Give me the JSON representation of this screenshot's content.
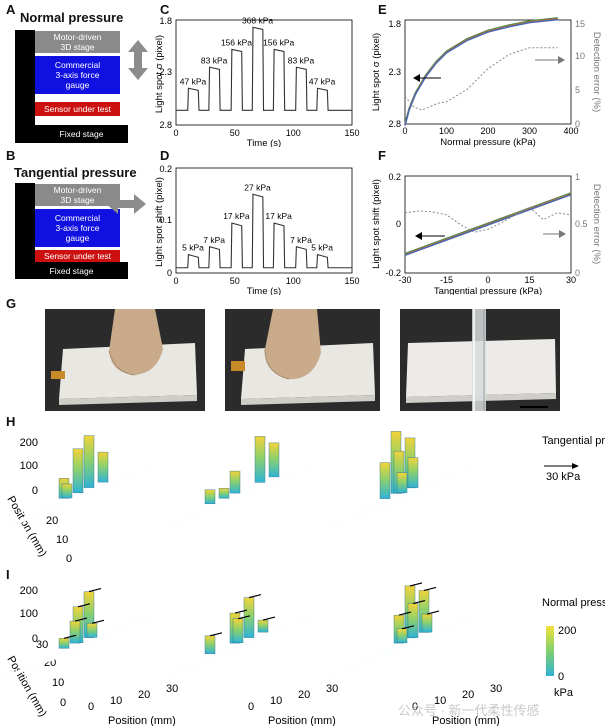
{
  "panels": {
    "A": {
      "label": "A",
      "title": "Normal pressure",
      "blocks": {
        "stage": "Motor-driven\n3D stage",
        "gauge": "Commercial\n3-axis force\ngauge",
        "sensor": "Sensor under test",
        "fixed": "Fixed stage"
      }
    },
    "B": {
      "label": "B",
      "title": "Tangential pressure",
      "blocks": {
        "stage": "Motor-driven\n3D stage",
        "gauge": "Commercial\n3-axis force\ngauge",
        "sensor": "Sensor under test",
        "fixed": "Fixed stage"
      }
    },
    "G": {
      "label": "G"
    },
    "H": {
      "label": "H",
      "legend_label": "Tangential\npressure",
      "arrow_label": "30 kPa"
    },
    "I": {
      "label": "I",
      "legend_label": "Normal\npressure",
      "colorbar_max": "200",
      "colorbar_min": "0",
      "colorbar_unit": "kPa"
    }
  },
  "colors": {
    "stage": "#8a8a8a",
    "gauge": "#1010e0",
    "sensor": "#cc1010",
    "fixed": "#000000",
    "frame": "#000000",
    "arrow": "#8c8c8c",
    "trace": "#333333"
  },
  "chart_data": [
    {
      "id": "C",
      "type": "line",
      "label": "C",
      "xlabel": "Time (s)",
      "ylabel": "Light spot σ (pixel)",
      "xlim": [
        0,
        150
      ],
      "ylim": [
        2.8,
        1.8
      ],
      "xticks": [
        "0",
        "50",
        "100",
        "150"
      ],
      "yticks": [
        "1.8",
        "2.3",
        "2.8"
      ],
      "annotations": [
        "47 kPa",
        "83 kPa",
        "156 kPa",
        "368 kPa",
        "156 kPa",
        "83 kPa",
        "47 kPa"
      ],
      "levels": [
        2.45,
        2.25,
        2.08,
        1.87,
        2.08,
        2.25,
        2.45
      ],
      "baseline": 2.66
    },
    {
      "id": "D",
      "type": "line",
      "label": "D",
      "xlabel": "Time (s)",
      "ylabel": "Light spot shift (pixel)",
      "xlim": [
        0,
        150
      ],
      "ylim": [
        0,
        0.2
      ],
      "xticks": [
        "0",
        "50",
        "100",
        "150"
      ],
      "yticks": [
        "0",
        "0.1",
        "0.2"
      ],
      "annotations": [
        "5 kPa",
        "7 kPa",
        "17 kPa",
        "27 kPa",
        "17 kPa",
        "7 kPa",
        "5 kPa"
      ],
      "levels": [
        0.035,
        0.05,
        0.095,
        0.15,
        0.095,
        0.05,
        0.035
      ],
      "baseline": 0.01
    },
    {
      "id": "E",
      "type": "line",
      "label": "E",
      "xlabel": "Normal pressure (kPa)",
      "ylabel": "Light spot σ (pixel)",
      "y2label": "Detection error (%)",
      "xlim": [
        0,
        400
      ],
      "ylim": [
        2.8,
        1.8
      ],
      "y2lim": [
        0,
        15
      ],
      "xticks": [
        "0",
        "100",
        "200",
        "300",
        "400"
      ],
      "yticks": [
        "1.8",
        "2.3",
        "2.8"
      ],
      "y2ticks": [
        "0",
        "5",
        "10",
        "15"
      ],
      "series": [
        {
          "name": "",
          "x": [
            0,
            10,
            25,
            50,
            75,
            100,
            150,
            200,
            250,
            300,
            368
          ],
          "y": [
            2.8,
            2.65,
            2.5,
            2.33,
            2.2,
            2.1,
            1.98,
            1.9,
            1.85,
            1.81,
            1.78
          ]
        },
        {
          "name": "",
          "x": [
            0,
            20,
            40,
            60,
            80,
            100,
            150,
            200,
            250,
            300,
            368
          ],
          "y2": [
            4,
            2.5,
            2,
            2.5,
            3,
            3.2,
            5,
            8,
            10,
            11,
            11
          ]
        }
      ]
    },
    {
      "id": "F",
      "type": "line",
      "label": "F",
      "xlabel": "Tangential pressure (kPa)",
      "ylabel": "Light spot shift (pixel)",
      "y2label": "Detection error (%)",
      "xlim": [
        -30,
        30
      ],
      "ylim": [
        -0.2,
        0.2
      ],
      "y2lim": [
        0,
        1
      ],
      "xticks": [
        "-30",
        "-15",
        "0",
        "15",
        "30"
      ],
      "yticks": [
        "-0.2",
        "0",
        "0.2"
      ],
      "y2ticks": [
        "0",
        "0.5",
        "1"
      ],
      "series": [
        {
          "name": "",
          "x": [
            -30,
            30
          ],
          "y": [
            -0.12,
            0.13
          ]
        },
        {
          "name": "",
          "x": [
            -30,
            -25,
            -20,
            -15,
            -10,
            -5,
            0,
            5,
            10,
            15,
            20,
            25,
            30
          ],
          "y2": [
            0.62,
            0.64,
            0.63,
            0.6,
            0.5,
            0.42,
            0.45,
            0.52,
            0.6,
            0.68,
            0.55,
            0.62,
            0.6
          ]
        }
      ]
    },
    {
      "id": "H",
      "type": "bar3d",
      "label": "H",
      "zticks": [
        "0",
        "100",
        "200"
      ],
      "ylabel": "Position\n(mm)",
      "yticks": [
        "0",
        "10",
        "20"
      ]
    },
    {
      "id": "I",
      "type": "bar3d",
      "label": "I",
      "zticks": [
        "0",
        "100",
        "200"
      ],
      "ylabel": "Position\n(mm)",
      "yticks": [
        "30",
        "20",
        "10",
        "0"
      ],
      "xlabel": "Position (mm)",
      "xticks": [
        "0",
        "10",
        "20",
        "30"
      ]
    }
  ],
  "watermark": "公众号 · 新一代柔性传感"
}
